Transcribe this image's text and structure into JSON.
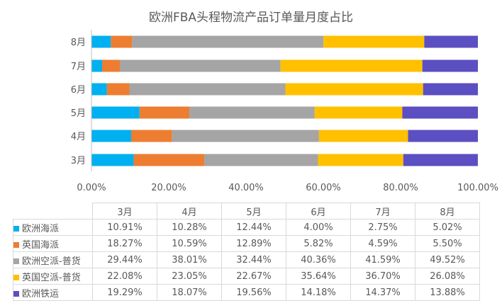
{
  "chart_data": {
    "type": "bar",
    "orientation": "horizontal",
    "stacked": "percent",
    "title": "欧洲FBA头程物流产品订单量月度占比",
    "categories": [
      "3月",
      "4月",
      "5月",
      "6月",
      "7月",
      "8月"
    ],
    "series": [
      {
        "name": "欧洲海派",
        "color": "#00b0f0",
        "values": [
          10.91,
          10.28,
          12.44,
          4.0,
          2.75,
          5.02
        ],
        "labels": [
          "10.91%",
          "10.28%",
          "12.44%",
          "4.00%",
          "2.75%",
          "5.02%"
        ]
      },
      {
        "name": "英国海派",
        "color": "#ed7d31",
        "values": [
          18.27,
          10.59,
          12.89,
          5.82,
          4.59,
          5.5
        ],
        "labels": [
          "18.27%",
          "10.59%",
          "12.89%",
          "5.82%",
          "4.59%",
          "5.50%"
        ]
      },
      {
        "name": "欧洲空派-普货",
        "color": "#a5a5a5",
        "values": [
          29.44,
          38.01,
          32.44,
          40.36,
          41.59,
          49.52
        ],
        "labels": [
          "29.44%",
          "38.01%",
          "32.44%",
          "40.36%",
          "41.59%",
          "49.52%"
        ]
      },
      {
        "name": "英国空派-普货",
        "color": "#ffc000",
        "values": [
          22.08,
          23.05,
          22.67,
          35.64,
          36.7,
          26.08
        ],
        "labels": [
          "22.08%",
          "23.05%",
          "22.67%",
          "35.64%",
          "36.70%",
          "26.08%"
        ]
      },
      {
        "name": "欧洲铁运",
        "color": "#5b4fc2",
        "values": [
          19.29,
          18.07,
          19.56,
          14.18,
          14.37,
          13.88
        ],
        "labels": [
          "19.29%",
          "18.07%",
          "19.56%",
          "14.18%",
          "14.37%",
          "13.88%"
        ]
      }
    ],
    "xlim": [
      0,
      100
    ],
    "xticks": [
      "0.00%",
      "20.00%",
      "40.00%",
      "60.00%",
      "80.00%",
      "100.00%"
    ],
    "grid": false,
    "legend": "data-table"
  }
}
